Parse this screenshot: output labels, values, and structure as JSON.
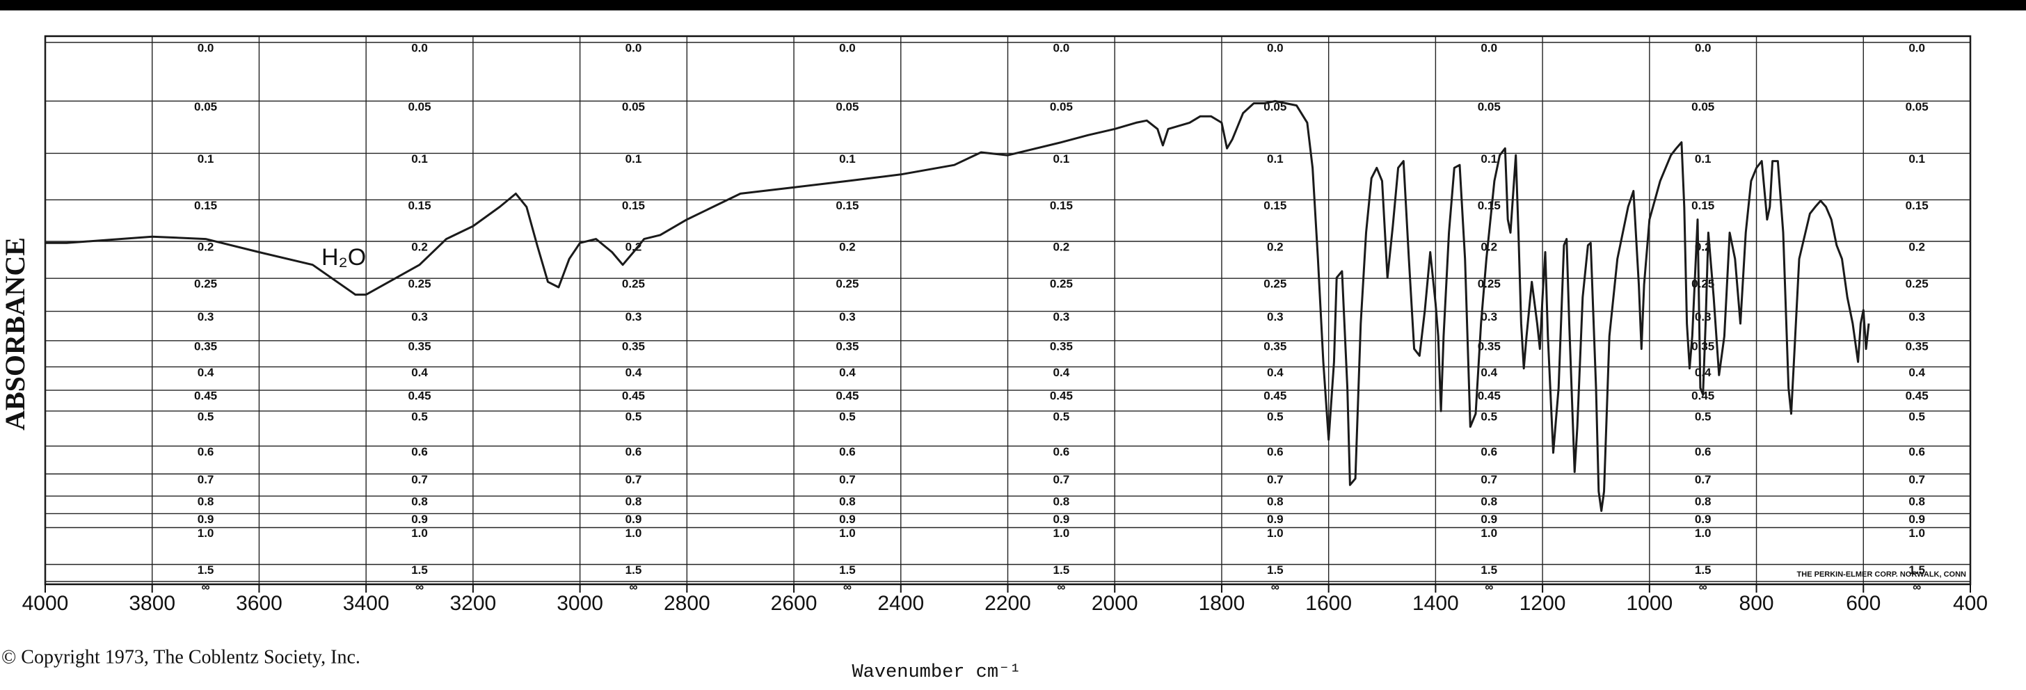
{
  "chart_data": {
    "type": "line",
    "ylabel": "ABSORBANCE",
    "xlabel": "Wavenumber cm⁻¹",
    "source": "© Copyright 1973, The Coblentz Society, Inc.",
    "annotations": [
      "H₂O",
      "THE PERKIN-ELMER CORP. NORWALK, CONN"
    ],
    "color": "#1a1a1a",
    "grid": true,
    "yscale": "absorbance",
    "xlim": [
      4000,
      400
    ],
    "xticks": [
      4000,
      3800,
      3600,
      3400,
      3200,
      3000,
      2800,
      2600,
      2400,
      2200,
      2000,
      1800,
      1600,
      1400,
      1200,
      1000,
      800,
      600,
      400
    ],
    "ylim": [
      0,
      null
    ],
    "yticks": [
      {
        "value": 0,
        "label": "0.0"
      },
      0.05,
      0.1,
      0.15,
      0.2,
      0.25,
      0.3,
      0.35,
      0.4,
      0.45,
      0.5,
      0.6,
      0.7,
      0.8,
      0.9,
      {
        "value": 1,
        "label": "1.0"
      },
      1.5,
      {
        "value": null,
        "label": "∞"
      }
    ],
    "x": [
      4000,
      3960,
      3800,
      3700,
      3600,
      3500,
      3420,
      3400,
      3300,
      3250,
      3200,
      3150,
      3120,
      3100,
      3080,
      3060,
      3040,
      3020,
      3000,
      2970,
      2940,
      2920,
      2900,
      2880,
      2850,
      2800,
      2700,
      2600,
      2500,
      2400,
      2300,
      2250,
      2200,
      2100,
      2050,
      2000,
      1960,
      1940,
      1920,
      1910,
      1900,
      1860,
      1840,
      1820,
      1800,
      1790,
      1780,
      1760,
      1740,
      1720,
      1700,
      1680,
      1660,
      1640,
      1630,
      1620,
      1610,
      1600,
      1590,
      1585,
      1575,
      1565,
      1560,
      1550,
      1540,
      1530,
      1520,
      1510,
      1500,
      1490,
      1480,
      1470,
      1460,
      1450,
      1440,
      1430,
      1420,
      1410,
      1400,
      1395,
      1390,
      1385,
      1375,
      1365,
      1355,
      1345,
      1335,
      1325,
      1315,
      1305,
      1300,
      1290,
      1280,
      1270,
      1265,
      1260,
      1250,
      1245,
      1240,
      1235,
      1230,
      1220,
      1210,
      1205,
      1200,
      1195,
      1190,
      1180,
      1170,
      1160,
      1155,
      1150,
      1140,
      1135,
      1125,
      1115,
      1110,
      1100,
      1095,
      1090,
      1085,
      1075,
      1060,
      1040,
      1030,
      1020,
      1015,
      1010,
      1000,
      980,
      960,
      950,
      940,
      935,
      930,
      925,
      920,
      910,
      905,
      900,
      895,
      890,
      880,
      870,
      860,
      850,
      840,
      830,
      820,
      810,
      800,
      790,
      780,
      775,
      770,
      760,
      750,
      740,
      735,
      730,
      720,
      700,
      690,
      680,
      670,
      660,
      650,
      640,
      630,
      620,
      610,
      605,
      600,
      595,
      590
    ],
    "values": [
      0.202,
      0.202,
      0.194,
      0.197,
      0.214,
      0.231,
      0.274,
      0.274,
      0.231,
      0.197,
      0.181,
      0.158,
      0.143,
      0.158,
      0.205,
      0.255,
      0.263,
      0.223,
      0.202,
      0.197,
      0.214,
      0.231,
      0.214,
      0.197,
      0.192,
      0.173,
      0.143,
      0.136,
      0.129,
      0.122,
      0.112,
      0.099,
      0.102,
      0.089,
      0.082,
      0.076,
      0.07,
      0.068,
      0.076,
      0.092,
      0.076,
      0.07,
      0.064,
      0.064,
      0.07,
      0.095,
      0.086,
      0.061,
      0.052,
      0.052,
      0.05,
      0.052,
      0.054,
      0.07,
      0.115,
      0.223,
      0.39,
      0.58,
      0.39,
      0.249,
      0.24,
      0.445,
      0.747,
      0.719,
      0.32,
      0.189,
      0.126,
      0.115,
      0.129,
      0.249,
      0.181,
      0.115,
      0.108,
      0.223,
      0.365,
      0.378,
      0.298,
      0.214,
      0.288,
      0.342,
      0.5,
      0.342,
      0.189,
      0.115,
      0.112,
      0.223,
      0.542,
      0.507,
      0.32,
      0.223,
      0.189,
      0.129,
      0.102,
      0.095,
      0.173,
      0.189,
      0.102,
      0.189,
      0.32,
      0.403,
      0.342,
      0.255,
      0.32,
      0.365,
      0.278,
      0.214,
      0.342,
      0.622,
      0.445,
      0.205,
      0.197,
      0.32,
      0.692,
      0.542,
      0.278,
      0.205,
      0.202,
      0.445,
      0.777,
      0.883,
      0.777,
      0.342,
      0.223,
      0.158,
      0.14,
      0.259,
      0.365,
      0.259,
      0.173,
      0.129,
      0.102,
      0.095,
      0.089,
      0.158,
      0.32,
      0.403,
      0.342,
      0.173,
      0.445,
      0.46,
      0.32,
      0.189,
      0.278,
      0.417,
      0.342,
      0.189,
      0.223,
      0.32,
      0.189,
      0.129,
      0.115,
      0.108,
      0.173,
      0.158,
      0.108,
      0.108,
      0.189,
      0.445,
      0.507,
      0.39,
      0.223,
      0.166,
      0.158,
      0.151,
      0.158,
      0.173,
      0.205,
      0.223,
      0.278,
      0.32,
      0.39,
      0.32,
      0.298,
      0.365,
      0.32
    ]
  }
}
